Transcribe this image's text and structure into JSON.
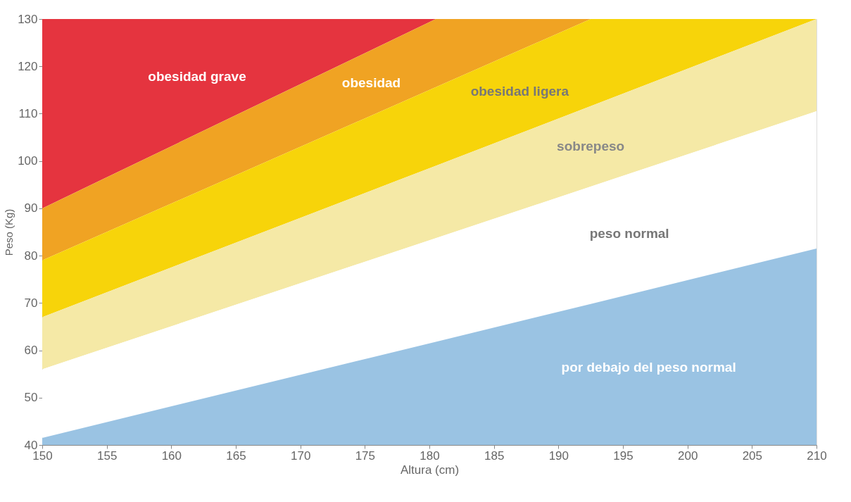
{
  "chart_data": {
    "type": "area",
    "xlabel": "Altura (cm)",
    "ylabel": "Peso (Kg)",
    "x": [
      150,
      180.5,
      192.5,
      210
    ],
    "xlim": [
      150,
      210
    ],
    "xticks": [
      150,
      155,
      160,
      165,
      170,
      175,
      180,
      185,
      190,
      195,
      200,
      205,
      210
    ],
    "ylim": [
      40,
      130
    ],
    "yticks": [
      40,
      50,
      60,
      70,
      80,
      90,
      100,
      110,
      120,
      130
    ],
    "grid": false,
    "legend": false,
    "series": [
      {
        "name": "por debajo del peso normal",
        "color": "#9ac3e3",
        "values": [
          41.5,
          61.8,
          69.8,
          81.5
        ]
      },
      {
        "name": "peso normal",
        "color": "#ffffff",
        "values": [
          56,
          83.7,
          94.6,
          110.5
        ]
      },
      {
        "name": "sobrepeso",
        "color": "#f5e9a6",
        "values": [
          67,
          99,
          111.6,
          130
        ]
      },
      {
        "name": "obesidad ligera",
        "color": "#f7d40a",
        "values": [
          79,
          115.6,
          130,
          130
        ]
      },
      {
        "name": "obesidad",
        "color": "#f0a323",
        "values": [
          90,
          130,
          130,
          130
        ]
      },
      {
        "name": "obesidad grave",
        "color": "#e5343f",
        "values": [
          130,
          130,
          130,
          130
        ]
      }
    ]
  }
}
